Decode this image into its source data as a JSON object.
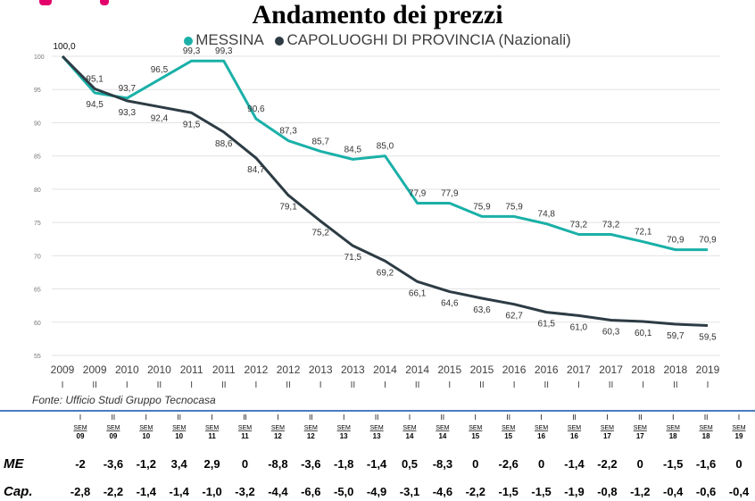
{
  "colors": {
    "messina": "#1ab0a8",
    "capoluoghi": "#2d3c44",
    "grid": "#e3e3e3",
    "divider": "#4a7cc0",
    "accent": "#e4006a"
  },
  "title": "Andamento dei prezzi",
  "source": "Fonte: Ufficio Studi Gruppo Tecnocasa",
  "chart_data": {
    "type": "line",
    "title": "Andamento dei prezzi",
    "categories": [
      "2009 I",
      "2009 II",
      "2010 I",
      "2010 II",
      "2011 I",
      "2011 II",
      "2012 I",
      "2012 II",
      "2013 I",
      "2013 II",
      "2014 I",
      "2014 II",
      "2015 I",
      "2015 II",
      "2016 I",
      "2016 II",
      "2017 I",
      "2017 II",
      "2018 I",
      "2018 II",
      "2019 I"
    ],
    "x_years": [
      "2009",
      "2009",
      "2010",
      "2010",
      "2011",
      "2011",
      "2012",
      "2012",
      "2013",
      "2013",
      "2014",
      "2014",
      "2015",
      "2015",
      "2016",
      "2016",
      "2017",
      "2017",
      "2018",
      "2018",
      "2019"
    ],
    "x_sems": [
      "I",
      "II",
      "I",
      "II",
      "I",
      "II",
      "I",
      "II",
      "I",
      "II",
      "I",
      "II",
      "I",
      "II",
      "I",
      "II",
      "I",
      "II",
      "I",
      "II",
      "I"
    ],
    "ylim": [
      55,
      100
    ],
    "yticks": [
      55,
      60,
      65,
      70,
      75,
      80,
      85,
      90,
      95,
      100
    ],
    "grid": true,
    "legend_position": "top",
    "series": [
      {
        "name": "MESSINA",
        "color": "#1ab0a8",
        "values": [
          100.0,
          94.5,
          93.7,
          96.5,
          99.3,
          99.3,
          90.6,
          87.3,
          85.7,
          84.5,
          85.0,
          77.9,
          77.9,
          75.9,
          75.9,
          74.8,
          73.2,
          73.2,
          72.1,
          70.9,
          70.9
        ],
        "labels": [
          "100,0",
          "94,5",
          "93,7",
          "96,5",
          "99,3",
          "99,3",
          "90,6",
          "87,3",
          "85,7",
          "84,5",
          "85,0",
          "77,9",
          "77,9",
          "75,9",
          "75,9",
          "74,8",
          "73,2",
          "73,2",
          "72,1",
          "70,9",
          "70,9"
        ]
      },
      {
        "name": "CAPOLUOGHI DI PROVINCIA (Nazionali)",
        "color": "#2d3c44",
        "values": [
          100.0,
          95.1,
          93.3,
          92.4,
          91.5,
          88.6,
          84.7,
          79.1,
          75.2,
          71.5,
          69.2,
          66.1,
          64.6,
          63.6,
          62.7,
          61.5,
          61.0,
          60.3,
          60.1,
          59.7,
          59.5
        ],
        "labels": [
          "100,0",
          "95,1",
          "93,3",
          "92,4",
          "91,5",
          "88,6",
          "84,7",
          "79,1",
          "75,2",
          "71,5",
          "69,2",
          "66,1",
          "64,6",
          "63,6",
          "62,7",
          "61,5",
          "61,0",
          "60,3",
          "60,1",
          "59,7",
          "59,5"
        ]
      }
    ]
  },
  "table": {
    "row_labels": [
      "ME",
      "Cap."
    ],
    "semesters": [
      "I SEM 09",
      "II SEM 09",
      "I SEM 10",
      "II SEM 10",
      "I SEM 11",
      "II SEM 11",
      "I SEM 12",
      "II SEM 12",
      "I SEM 13",
      "II SEM 13",
      "I SEM 14",
      "II SEM 14",
      "I SEM 15",
      "II SEM 15",
      "I SEM 16",
      "II SEM 16",
      "I SEM 17",
      "II SEM 17",
      "I SEM 18",
      "II SEM 18",
      "I SEM 19"
    ],
    "sem_roman": [
      "I",
      "II",
      "I",
      "II",
      "I",
      "II",
      "I",
      "II",
      "I",
      "II",
      "I",
      "II",
      "I",
      "II",
      "I",
      "II",
      "I",
      "II",
      "I",
      "II",
      "I"
    ],
    "sem_word": "SEM",
    "sem_year": [
      "09",
      "09",
      "10",
      "10",
      "11",
      "11",
      "12",
      "12",
      "13",
      "13",
      "14",
      "14",
      "15",
      "15",
      "16",
      "16",
      "17",
      "17",
      "18",
      "18",
      "19"
    ],
    "me": [
      "-2",
      "-3,6",
      "-1,2",
      "3,4",
      "2,9",
      "0",
      "-8,8",
      "-3,6",
      "-1,8",
      "-1,4",
      "0,5",
      "-8,3",
      "0",
      "-2,6",
      "0",
      "-1,4",
      "-2,2",
      "0",
      "-1,5",
      "-1,6",
      "0"
    ],
    "cap": [
      "-2,8",
      "-2,2",
      "-1,4",
      "-1,4",
      "-1,0",
      "-3,2",
      "-4,4",
      "-6,6",
      "-5,0",
      "-4,9",
      "-3,1",
      "-4,6",
      "-2,2",
      "-1,5",
      "-1,5",
      "-1,9",
      "-0,8",
      "-1,2",
      "-0,4",
      "-0,6",
      "-0,4"
    ]
  }
}
